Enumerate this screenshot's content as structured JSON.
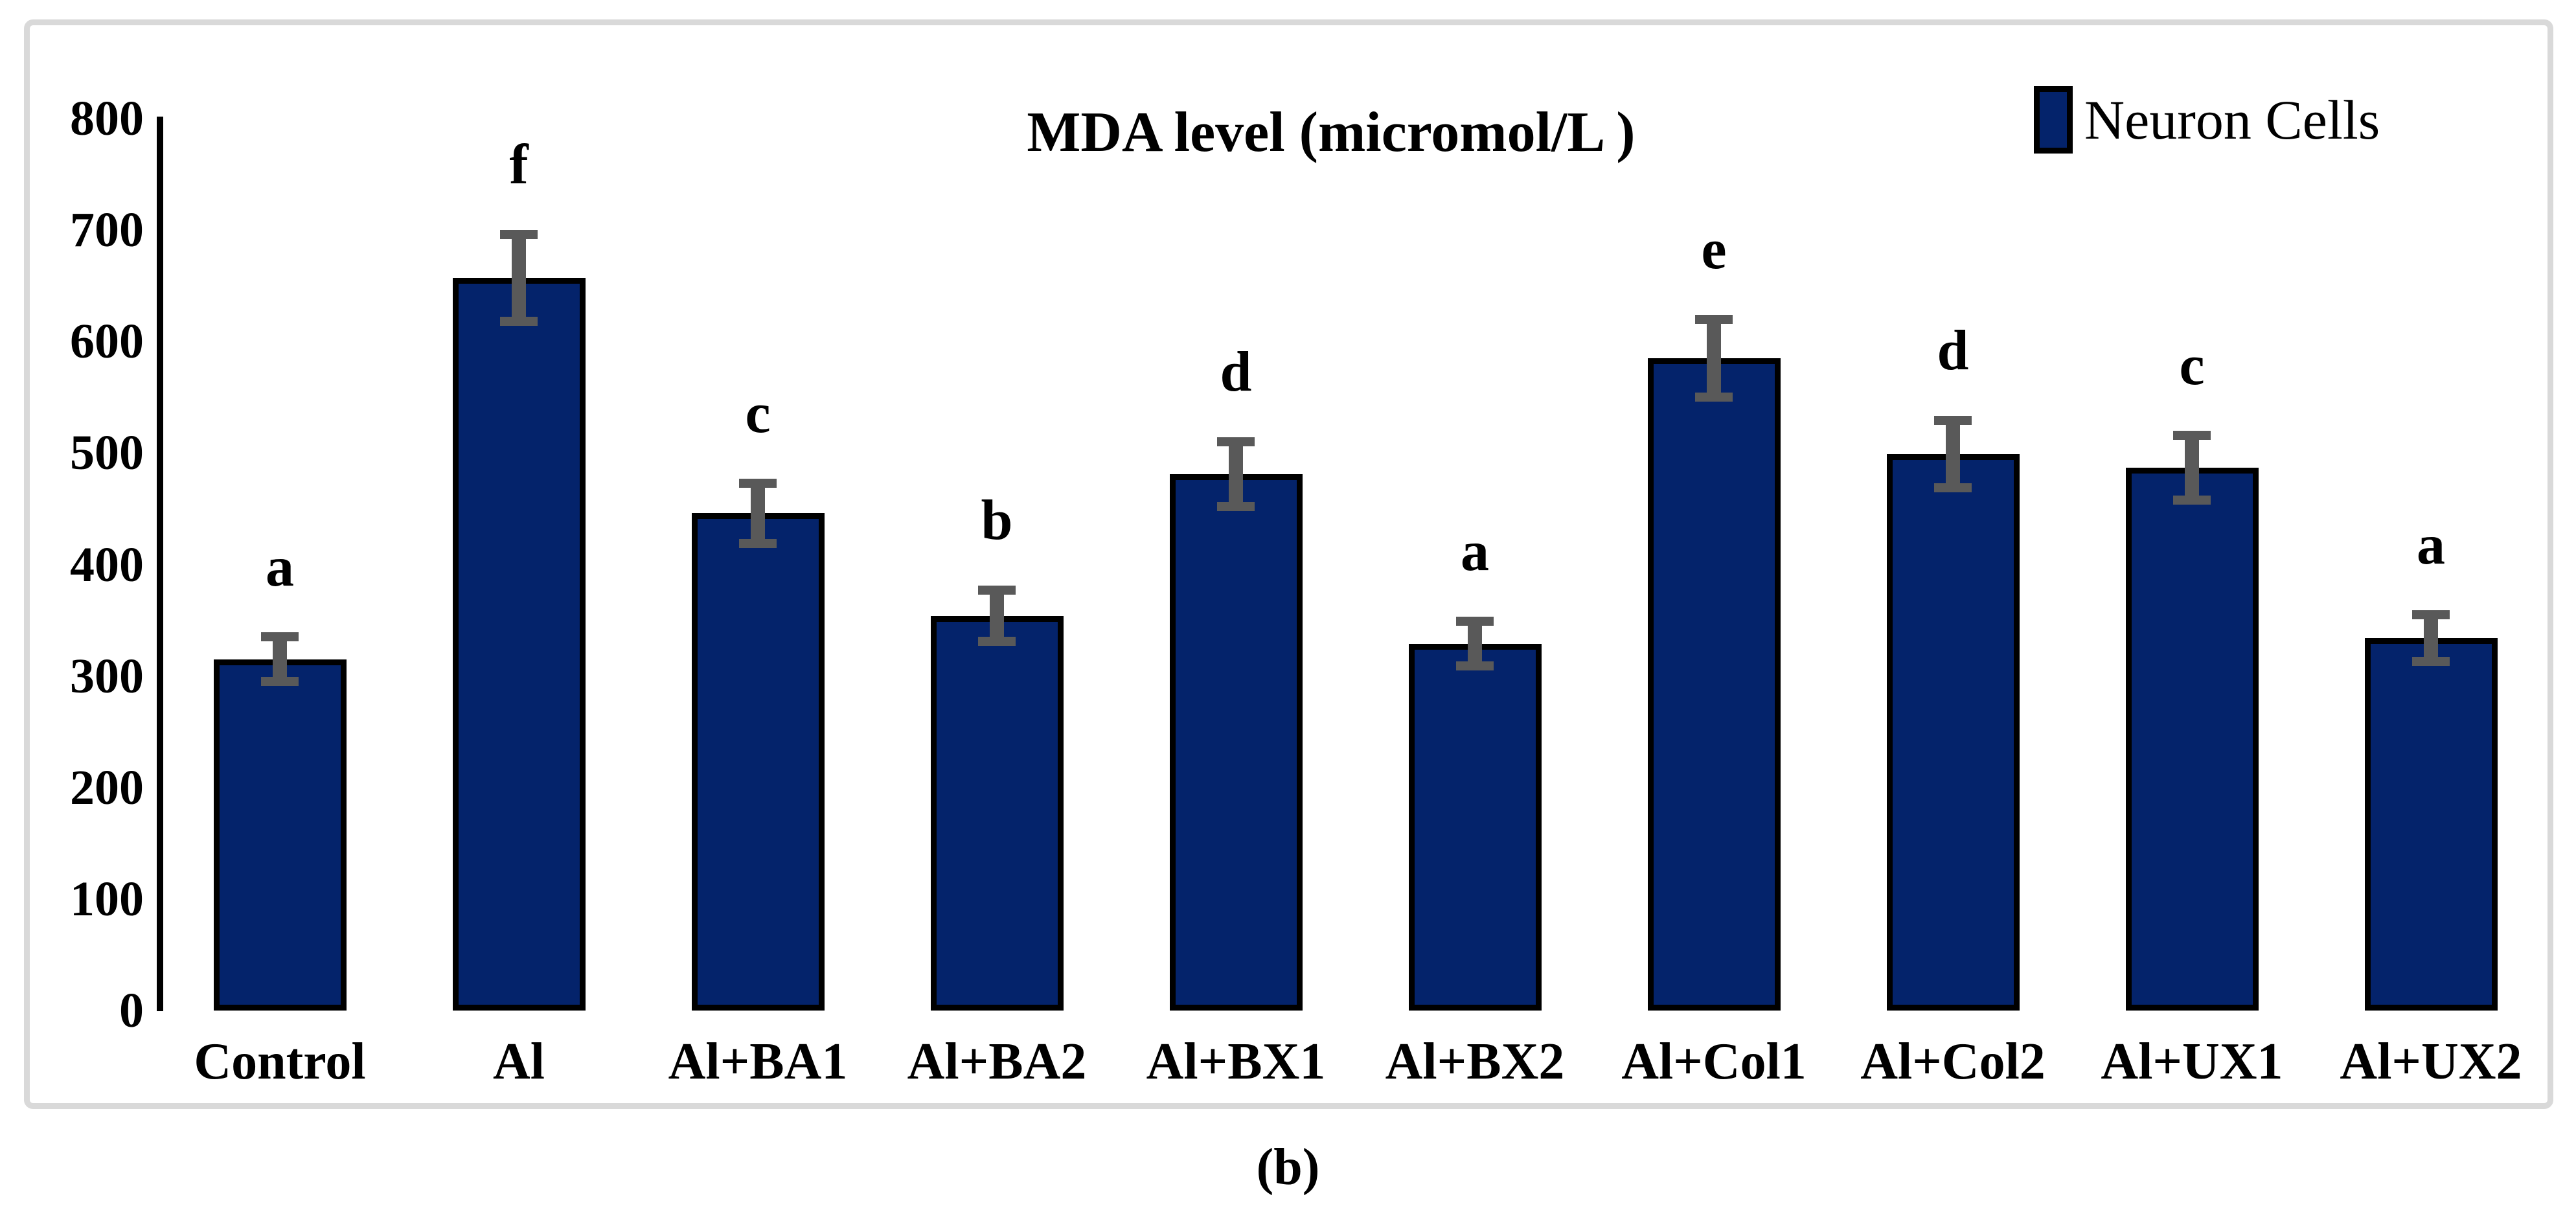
{
  "figure": {
    "caption": "(b)"
  },
  "chart_data": {
    "type": "bar",
    "title": "MDA level (micromol/L )",
    "categories": [
      "Control",
      "Al",
      "Al+BA1",
      "Al+BA2",
      "Al+BX1",
      "Al+BX2",
      "Al+Col1",
      "Al+Col2",
      "Al+UX1",
      "Al+UX2"
    ],
    "series": [
      {
        "name": "Neuron Cells",
        "values": [
          315,
          657,
          446,
          354,
          481,
          329,
          585,
          499,
          487,
          334
        ],
        "error_bars": [
          20,
          39,
          27,
          23,
          29,
          20,
          35,
          30,
          29,
          21
        ],
        "significance_letters": [
          "a",
          "f",
          "c",
          "b",
          "d",
          "a",
          "e",
          "d",
          "c",
          "a"
        ],
        "color": "#04236b"
      }
    ],
    "xlabel": "",
    "ylabel": "",
    "ylim": [
      0,
      800
    ],
    "yticks": [
      0,
      100,
      200,
      300,
      400,
      500,
      600,
      700,
      800
    ],
    "grid": false,
    "legend_position": "top-right",
    "error_bar_color": "#595959",
    "frame_color": "#d9d9d9"
  }
}
